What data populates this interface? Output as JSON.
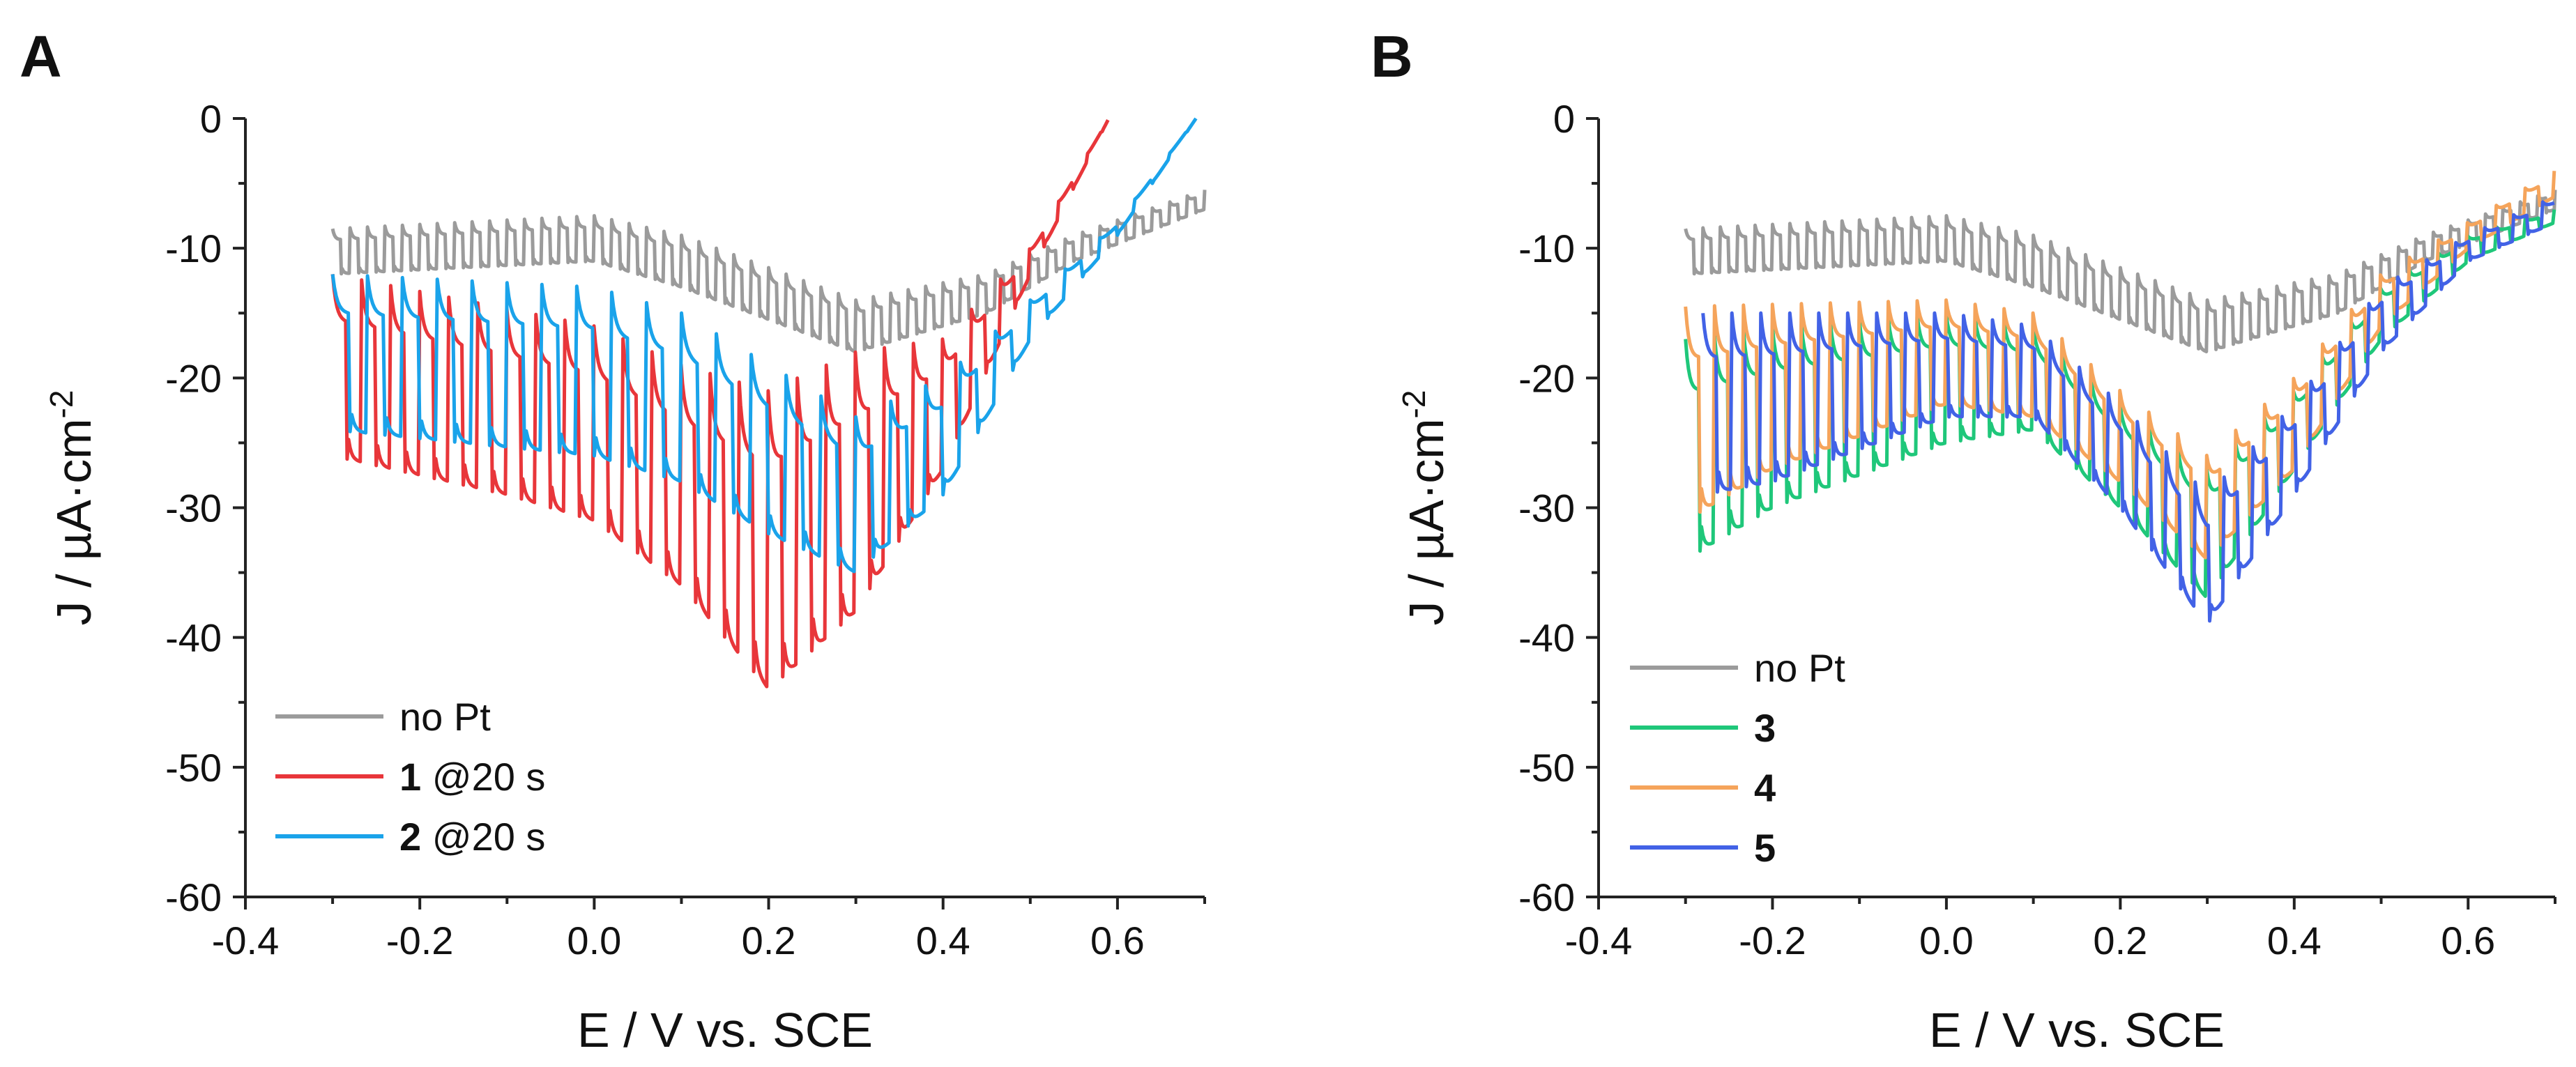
{
  "chart_data": [
    {
      "panel": "A",
      "type": "line",
      "xlabel": "E / V vs. SCE",
      "ylabel": {
        "main": "J / µA·cm",
        "exp": "-2"
      },
      "xlim": [
        -0.4,
        0.7
      ],
      "ylim": [
        -60,
        0
      ],
      "xticks": [
        -0.4,
        -0.2,
        0.0,
        0.2,
        0.4,
        0.6
      ],
      "xtick_labels": [
        "-0.4",
        "-0.2",
        "0.0",
        "0.2",
        "0.4",
        "0.6"
      ],
      "yticks": [
        0,
        -10,
        -20,
        -30,
        -40,
        -50,
        -60
      ],
      "ytick_labels": [
        "0",
        "-10",
        "-20",
        "-30",
        "-40",
        "-50",
        "-60"
      ],
      "legend_position": "bottom-left",
      "series": [
        {
          "name": "no Pt",
          "label_bold": "",
          "label_rest": "no Pt",
          "color": "#9b9b9b",
          "x_start": -0.3,
          "x_end": 0.7,
          "chopped": true,
          "period": 0.02,
          "dark": [
            [
              -0.3,
              -12
            ],
            [
              0.0,
              -11
            ],
            [
              0.1,
              -13
            ],
            [
              0.3,
              -18
            ],
            [
              0.45,
              -15
            ],
            [
              0.55,
              -11
            ],
            [
              0.7,
              -7
            ]
          ],
          "light": [
            [
              -0.3,
              -8.5
            ],
            [
              0.0,
              -7.5
            ],
            [
              0.1,
              -9
            ],
            [
              0.3,
              -14
            ],
            [
              0.45,
              -12
            ],
            [
              0.55,
              -9
            ],
            [
              0.7,
              -5.5
            ]
          ]
        },
        {
          "name": "1 @20 s",
          "label_bold": "1",
          "label_rest": " @20 s",
          "color": "#e8363a",
          "x_start": -0.3,
          "x_end": 0.59,
          "chopped": true,
          "period": 0.0333,
          "dark": [
            [
              -0.3,
              -26
            ],
            [
              -0.1,
              -29
            ],
            [
              0.0,
              -31
            ],
            [
              0.1,
              -36
            ],
            [
              0.2,
              -44
            ],
            [
              0.3,
              -38
            ],
            [
              0.4,
              -27
            ],
            [
              0.5,
              -12
            ],
            [
              0.59,
              0
            ]
          ],
          "light": [
            [
              -0.3,
              -12
            ],
            [
              0.0,
              -16
            ],
            [
              0.1,
              -19
            ],
            [
              0.2,
              -21
            ],
            [
              0.3,
              -18
            ],
            [
              0.4,
              -17
            ],
            [
              0.5,
              -10
            ],
            [
              0.59,
              0
            ]
          ]
        },
        {
          "name": "2 @20 s",
          "label_bold": "2",
          "label_rest": " @20 s",
          "color": "#1aa3ea",
          "x_start": -0.3,
          "x_end": 0.69,
          "chopped": true,
          "period": 0.04,
          "dark": [
            [
              -0.3,
              -24
            ],
            [
              0.0,
              -26
            ],
            [
              0.1,
              -28
            ],
            [
              0.2,
              -32
            ],
            [
              0.3,
              -35
            ],
            [
              0.4,
              -29
            ],
            [
              0.5,
              -17
            ],
            [
              0.6,
              -9
            ],
            [
              0.69,
              0
            ]
          ],
          "light": [
            [
              -0.3,
              -12
            ],
            [
              0.0,
              -13
            ],
            [
              0.1,
              -15
            ],
            [
              0.2,
              -19
            ],
            [
              0.3,
              -23
            ],
            [
              0.4,
              -20
            ],
            [
              0.5,
              -14
            ],
            [
              0.6,
              -8
            ],
            [
              0.69,
              0
            ]
          ]
        }
      ]
    },
    {
      "panel": "B",
      "type": "line",
      "xlabel": "E / V vs. SCE",
      "ylabel": {
        "main": "J / µA·cm",
        "exp": "-2"
      },
      "xlim": [
        -0.4,
        0.7
      ],
      "ylim": [
        -60,
        0
      ],
      "xticks": [
        -0.4,
        -0.2,
        0.0,
        0.2,
        0.4,
        0.6
      ],
      "xtick_labels": [
        "-0.4",
        "-0.2",
        "0.0",
        "0.2",
        "0.4",
        "0.6"
      ],
      "yticks": [
        0,
        -10,
        -20,
        -30,
        -40,
        -50,
        -60
      ],
      "ytick_labels": [
        "0",
        "-10",
        "-20",
        "-30",
        "-40",
        "-50",
        "-60"
      ],
      "legend_position": "bottom-left",
      "series": [
        {
          "name": "no Pt",
          "label_bold": "",
          "label_rest": "no Pt",
          "color": "#9b9b9b",
          "x_start": -0.3,
          "x_end": 0.7,
          "chopped": true,
          "period": 0.02,
          "dark": [
            [
              -0.3,
              -12
            ],
            [
              0.0,
              -11
            ],
            [
              0.1,
              -13
            ],
            [
              0.3,
              -18
            ],
            [
              0.45,
              -15
            ],
            [
              0.55,
              -11
            ],
            [
              0.7,
              -7
            ]
          ],
          "light": [
            [
              -0.3,
              -8.5
            ],
            [
              0.0,
              -7.5
            ],
            [
              0.1,
              -9
            ],
            [
              0.3,
              -14
            ],
            [
              0.45,
              -12
            ],
            [
              0.55,
              -9
            ],
            [
              0.7,
              -5.5
            ]
          ]
        },
        {
          "name": "3",
          "label_bold": "3",
          "label_rest": "",
          "color": "#1fc77a",
          "x_start": -0.3,
          "x_end": 0.7,
          "chopped": true,
          "period": 0.0333,
          "dark": [
            [
              -0.3,
              -34
            ],
            [
              -0.2,
              -30
            ],
            [
              0.0,
              -25
            ],
            [
              0.1,
              -24
            ],
            [
              0.2,
              -30
            ],
            [
              0.3,
              -37
            ],
            [
              0.4,
              -27
            ],
            [
              0.5,
              -17
            ],
            [
              0.6,
              -11
            ],
            [
              0.7,
              -8
            ]
          ],
          "light": [
            [
              -0.3,
              -17
            ],
            [
              -0.2,
              -16
            ],
            [
              0.0,
              -15
            ],
            [
              0.1,
              -16
            ],
            [
              0.2,
              -22
            ],
            [
              0.3,
              -27
            ],
            [
              0.4,
              -21
            ],
            [
              0.5,
              -13
            ],
            [
              0.6,
              -9
            ],
            [
              0.7,
              -7
            ]
          ]
        },
        {
          "name": "4",
          "label_bold": "4",
          "label_rest": "",
          "color": "#f5a45b",
          "x_start": -0.3,
          "x_end": 0.7,
          "chopped": true,
          "period": 0.0333,
          "dark": [
            [
              -0.3,
              -31
            ],
            [
              -0.2,
              -27
            ],
            [
              0.0,
              -22
            ],
            [
              0.1,
              -23
            ],
            [
              0.2,
              -28
            ],
            [
              0.3,
              -34
            ],
            [
              0.4,
              -27
            ],
            [
              0.5,
              -16
            ],
            [
              0.6,
              -10
            ],
            [
              0.7,
              -6
            ]
          ],
          "light": [
            [
              -0.3,
              -14.5
            ],
            [
              0.0,
              -14
            ],
            [
              0.1,
              -15
            ],
            [
              0.2,
              -21
            ],
            [
              0.3,
              -26
            ],
            [
              0.4,
              -20
            ],
            [
              0.5,
              -12
            ],
            [
              0.6,
              -8
            ],
            [
              0.7,
              -4
            ]
          ]
        },
        {
          "name": "5",
          "label_bold": "5",
          "label_rest": "",
          "color": "#4262e6",
          "x_start": -0.28,
          "x_end": 0.7,
          "chopped": true,
          "period": 0.0333,
          "dark": [
            [
              -0.28,
              -29
            ],
            [
              -0.2,
              -28
            ],
            [
              0.0,
              -23
            ],
            [
              0.1,
              -23
            ],
            [
              0.2,
              -30
            ],
            [
              0.3,
              -39
            ],
            [
              0.4,
              -29
            ],
            [
              0.5,
              -18
            ],
            [
              0.6,
              -11
            ],
            [
              0.7,
              -8
            ]
          ],
          "light": [
            [
              -0.28,
              -15
            ],
            [
              0.0,
              -15
            ],
            [
              0.1,
              -16
            ],
            [
              0.2,
              -22
            ],
            [
              0.3,
              -29
            ],
            [
              0.4,
              -22
            ],
            [
              0.5,
              -13
            ],
            [
              0.6,
              -9
            ],
            [
              0.7,
              -6
            ]
          ]
        }
      ]
    }
  ]
}
